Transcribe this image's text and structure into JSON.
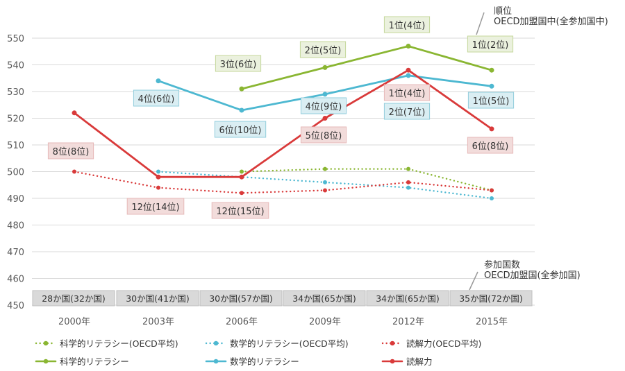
{
  "chart_data": {
    "type": "line",
    "categories": [
      "2000年",
      "2003年",
      "2006年",
      "2009年",
      "2012年",
      "2015年"
    ],
    "ylim": [
      450,
      550
    ],
    "yticks": [
      450,
      460,
      470,
      480,
      490,
      500,
      510,
      520,
      530,
      540,
      550
    ],
    "grid": true,
    "legend_position": "bottom",
    "series": [
      {
        "name": "科学的リテラシー(OECD平均)",
        "style": "dotted",
        "color": "#8ab632",
        "values": [
          null,
          null,
          500,
          501,
          501,
          493
        ]
      },
      {
        "name": "数学的リテラシー(OECD平均)",
        "style": "dotted",
        "color": "#4db8d1",
        "values": [
          null,
          500,
          498,
          496,
          494,
          490
        ]
      },
      {
        "name": "読解力(OECD平均)",
        "style": "dotted",
        "color": "#d93a3a",
        "values": [
          500,
          494,
          492,
          493,
          496,
          493
        ]
      },
      {
        "name": "科学的リテラシー",
        "style": "solid",
        "color": "#8ab632",
        "values": [
          null,
          null,
          531,
          539,
          547,
          538
        ]
      },
      {
        "name": "数学的リテラシー",
        "style": "solid",
        "color": "#4db8d1",
        "values": [
          null,
          534,
          523,
          529,
          536,
          532
        ]
      },
      {
        "name": "読解力",
        "style": "solid",
        "color": "#d93a3a",
        "values": [
          522,
          498,
          498,
          520,
          538,
          516
        ]
      }
    ],
    "rank_labels": [
      {
        "series": "科学的リテラシー",
        "category": "2006年",
        "text": "3位(6位)"
      },
      {
        "series": "科学的リテラシー",
        "category": "2009年",
        "text": "2位(5位)"
      },
      {
        "series": "科学的リテラシー",
        "category": "2012年",
        "text": "1位(4位)"
      },
      {
        "series": "科学的リテラシー",
        "category": "2015年",
        "text": "1位(2位)"
      },
      {
        "series": "数学的リテラシー",
        "category": "2003年",
        "text": "4位(6位)"
      },
      {
        "series": "数学的リテラシー",
        "category": "2006年",
        "text": "6位(10位)"
      },
      {
        "series": "数学的リテラシー",
        "category": "2009年",
        "text": "4位(9位)"
      },
      {
        "series": "数学的リテラシー",
        "category": "2012年",
        "text": "2位(7位)"
      },
      {
        "series": "数学的リテラシー",
        "category": "2015年",
        "text": "1位(5位)"
      },
      {
        "series": "読解力",
        "category": "2000年",
        "text": "8位(8位)"
      },
      {
        "series": "読解力",
        "category": "2003年",
        "text": "12位(14位)"
      },
      {
        "series": "読解力",
        "category": "2006年",
        "text": "12位(15位)"
      },
      {
        "series": "読解力",
        "category": "2009年",
        "text": "5位(8位)"
      },
      {
        "series": "読解力",
        "category": "2012年",
        "text": "1位(4位)"
      },
      {
        "series": "読解力",
        "category": "2015年",
        "text": "6位(8位)"
      }
    ],
    "participants": [
      "28か国(32か国)",
      "30か国(41か国)",
      "30か国(57か国)",
      "34か国(65か国)",
      "34か国(65か国)",
      "35か国(72か国)"
    ],
    "annotations": {
      "rank_note": [
        "順位",
        "OECD加盟国中(全参加国中)"
      ],
      "participants_note": [
        "参加国数",
        "OECD加盟国(全参加国)"
      ]
    }
  }
}
